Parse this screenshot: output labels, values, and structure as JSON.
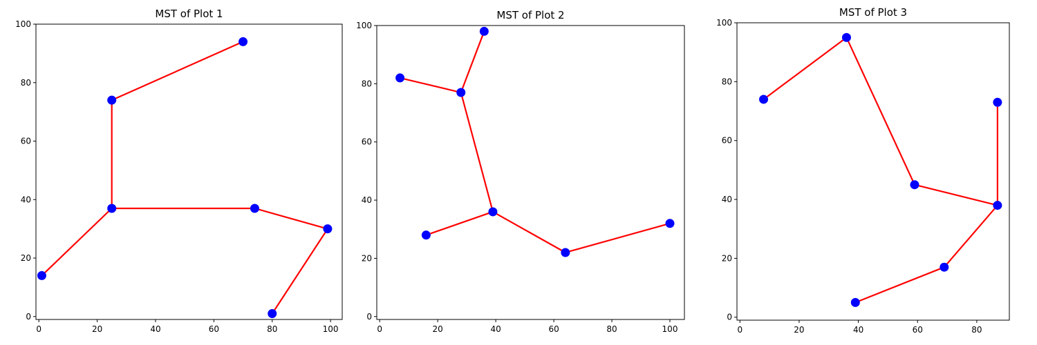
{
  "chart_data": [
    {
      "type": "scatter",
      "title": "MST of Plot 1",
      "xlim": [
        -1,
        104
      ],
      "ylim": [
        -1,
        100
      ],
      "xticks": [
        0,
        20,
        40,
        60,
        80,
        100
      ],
      "yticks": [
        0,
        20,
        40,
        60,
        80,
        100
      ],
      "point_color": "#0000ff",
      "edge_color": "#ff0000",
      "points": [
        {
          "x": 70,
          "y": 94
        },
        {
          "x": 25,
          "y": 74
        },
        {
          "x": 25,
          "y": 37
        },
        {
          "x": 74,
          "y": 37
        },
        {
          "x": 99,
          "y": 30
        },
        {
          "x": 1,
          "y": 14
        },
        {
          "x": 80,
          "y": 1
        }
      ],
      "edges": [
        [
          0,
          1
        ],
        [
          1,
          2
        ],
        [
          2,
          3
        ],
        [
          3,
          4
        ],
        [
          2,
          5
        ],
        [
          4,
          6
        ]
      ]
    },
    {
      "type": "scatter",
      "title": "MST of Plot 2",
      "xlim": [
        -1,
        105
      ],
      "ylim": [
        -1,
        100
      ],
      "xticks": [
        0,
        20,
        40,
        60,
        80,
        100
      ],
      "yticks": [
        0,
        20,
        40,
        60,
        80,
        100
      ],
      "point_color": "#0000ff",
      "edge_color": "#ff0000",
      "points": [
        {
          "x": 36,
          "y": 98
        },
        {
          "x": 7,
          "y": 82
        },
        {
          "x": 28,
          "y": 77
        },
        {
          "x": 39,
          "y": 36
        },
        {
          "x": 16,
          "y": 28
        },
        {
          "x": 64,
          "y": 22
        },
        {
          "x": 100,
          "y": 32
        }
      ],
      "edges": [
        [
          0,
          2
        ],
        [
          1,
          2
        ],
        [
          2,
          3
        ],
        [
          3,
          4
        ],
        [
          3,
          5
        ],
        [
          5,
          6
        ]
      ]
    },
    {
      "type": "scatter",
      "title": "MST of Plot 3",
      "xlim": [
        -1,
        91
      ],
      "ylim": [
        -1,
        100
      ],
      "xticks": [
        0,
        20,
        40,
        60,
        80
      ],
      "yticks": [
        0,
        20,
        40,
        60,
        80,
        100
      ],
      "point_color": "#0000ff",
      "edge_color": "#ff0000",
      "points": [
        {
          "x": 36,
          "y": 95
        },
        {
          "x": 8,
          "y": 74
        },
        {
          "x": 87,
          "y": 73
        },
        {
          "x": 59,
          "y": 45
        },
        {
          "x": 87,
          "y": 38
        },
        {
          "x": 69,
          "y": 17
        },
        {
          "x": 39,
          "y": 5
        }
      ],
      "edges": [
        [
          0,
          1
        ],
        [
          0,
          3
        ],
        [
          3,
          4
        ],
        [
          2,
          4
        ],
        [
          4,
          5
        ],
        [
          5,
          6
        ]
      ]
    }
  ]
}
